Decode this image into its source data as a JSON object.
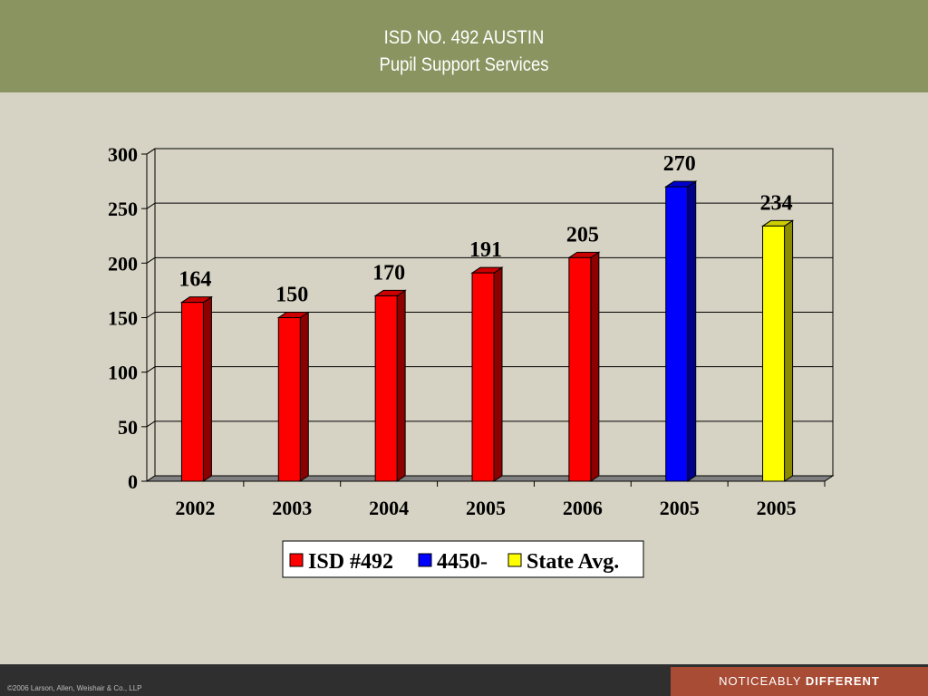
{
  "header": {
    "title_line1": "ISD NO. 492 AUSTIN",
    "title_line2": "Pupil Support Services"
  },
  "footer": {
    "copyright": "©2006 Larson, Allen, Weishair & Co., LLP",
    "tagline_regular": "NOTICEABLY ",
    "tagline_bold": "DIFFERENT"
  },
  "colors": {
    "header_bg": "#8a9460",
    "page_bg": "#d6d3c4",
    "isd": "#ff0000",
    "region": "#0000ff",
    "state": "#ffff00",
    "footer_accent": "#a84c35"
  },
  "chart_data": {
    "type": "bar",
    "title": "",
    "xlabel": "",
    "ylabel": "",
    "ylim": [
      0,
      300
    ],
    "yticks": [
      0,
      50,
      100,
      150,
      200,
      250,
      300
    ],
    "grid": true,
    "legend_position": "bottom",
    "categories": [
      "2002",
      "2003",
      "2004",
      "2005",
      "2006",
      "2005",
      "2005"
    ],
    "series": [
      {
        "name": "ISD #492",
        "color": "#ff0000",
        "values": [
          164,
          150,
          170,
          191,
          205,
          null,
          null
        ]
      },
      {
        "name": "4450-",
        "color": "#0000ff",
        "values": [
          null,
          null,
          null,
          null,
          null,
          270,
          null
        ]
      },
      {
        "name": "State Avg.",
        "color": "#ffff00",
        "values": [
          null,
          null,
          null,
          null,
          null,
          null,
          234
        ]
      }
    ]
  }
}
